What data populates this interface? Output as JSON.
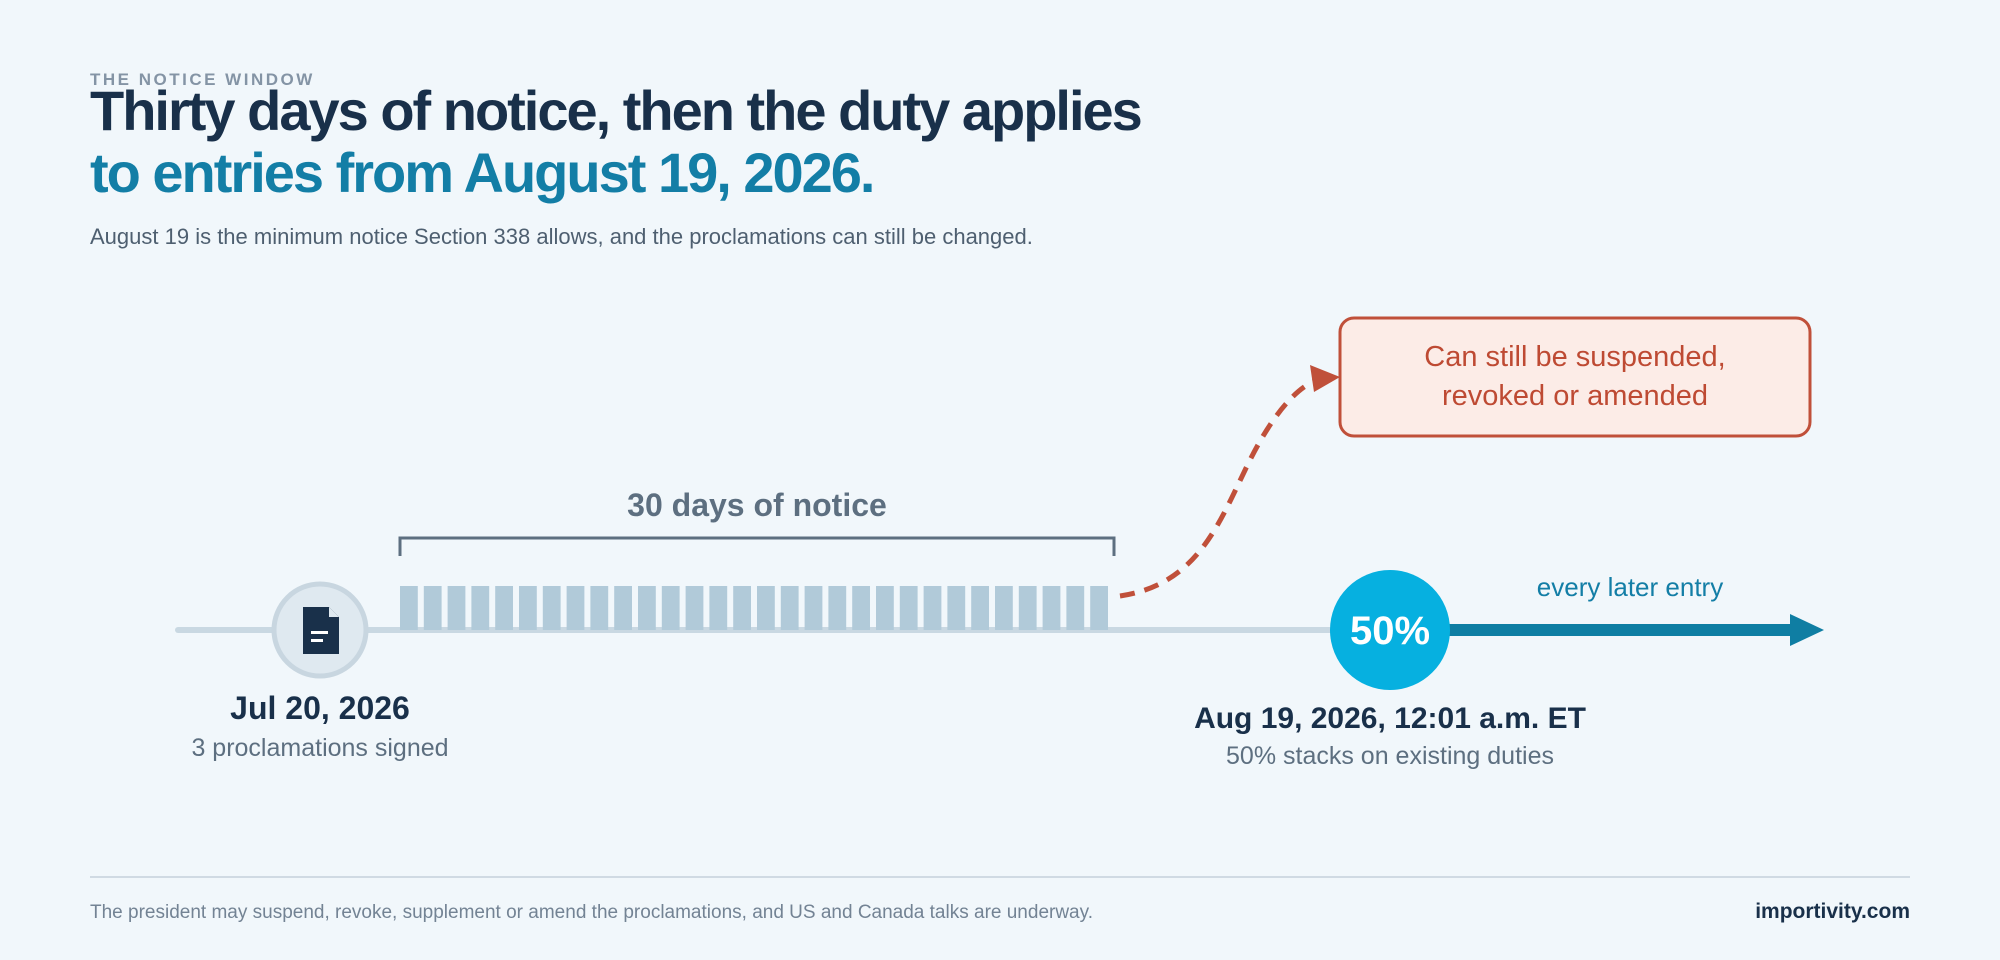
{
  "header": {
    "eyebrow": "THE NOTICE WINDOW",
    "title_line1": "Thirty days of notice, then the duty applies",
    "title_line2": "to entries from August 19, 2026.",
    "subtitle": "August 19 is the minimum notice Section 338 allows, and the proclamations can still be changed."
  },
  "timeline": {
    "notice_label": "30 days of notice",
    "notice_days": 30,
    "start": {
      "date": "Jul 20, 2026",
      "caption": "3 proclamations signed",
      "icon": "document-icon"
    },
    "effective": {
      "badge": "50%",
      "date": "Aug 19, 2026, 12:01 a.m. ET",
      "caption": "50% stacks on existing duties"
    },
    "later_label": "every later entry",
    "callout_line1": "Can still be suspended,",
    "callout_line2": "revoked or amended"
  },
  "footer": {
    "note": "The president may suspend, revoke, supplement or amend the proclamations, and US and Canada talks are underway.",
    "brand": "importivity.com"
  },
  "colors": {
    "navy": "#19304a",
    "teal": "#137ea6",
    "cyan_badge": "#06b0e0",
    "arrow": "#0f7ea3",
    "day_bar": "#b1cad9",
    "callout_border": "#c0503a",
    "callout_fill": "#fcece7",
    "callout_text": "#be4a33",
    "track": "#c9d8e2"
  }
}
